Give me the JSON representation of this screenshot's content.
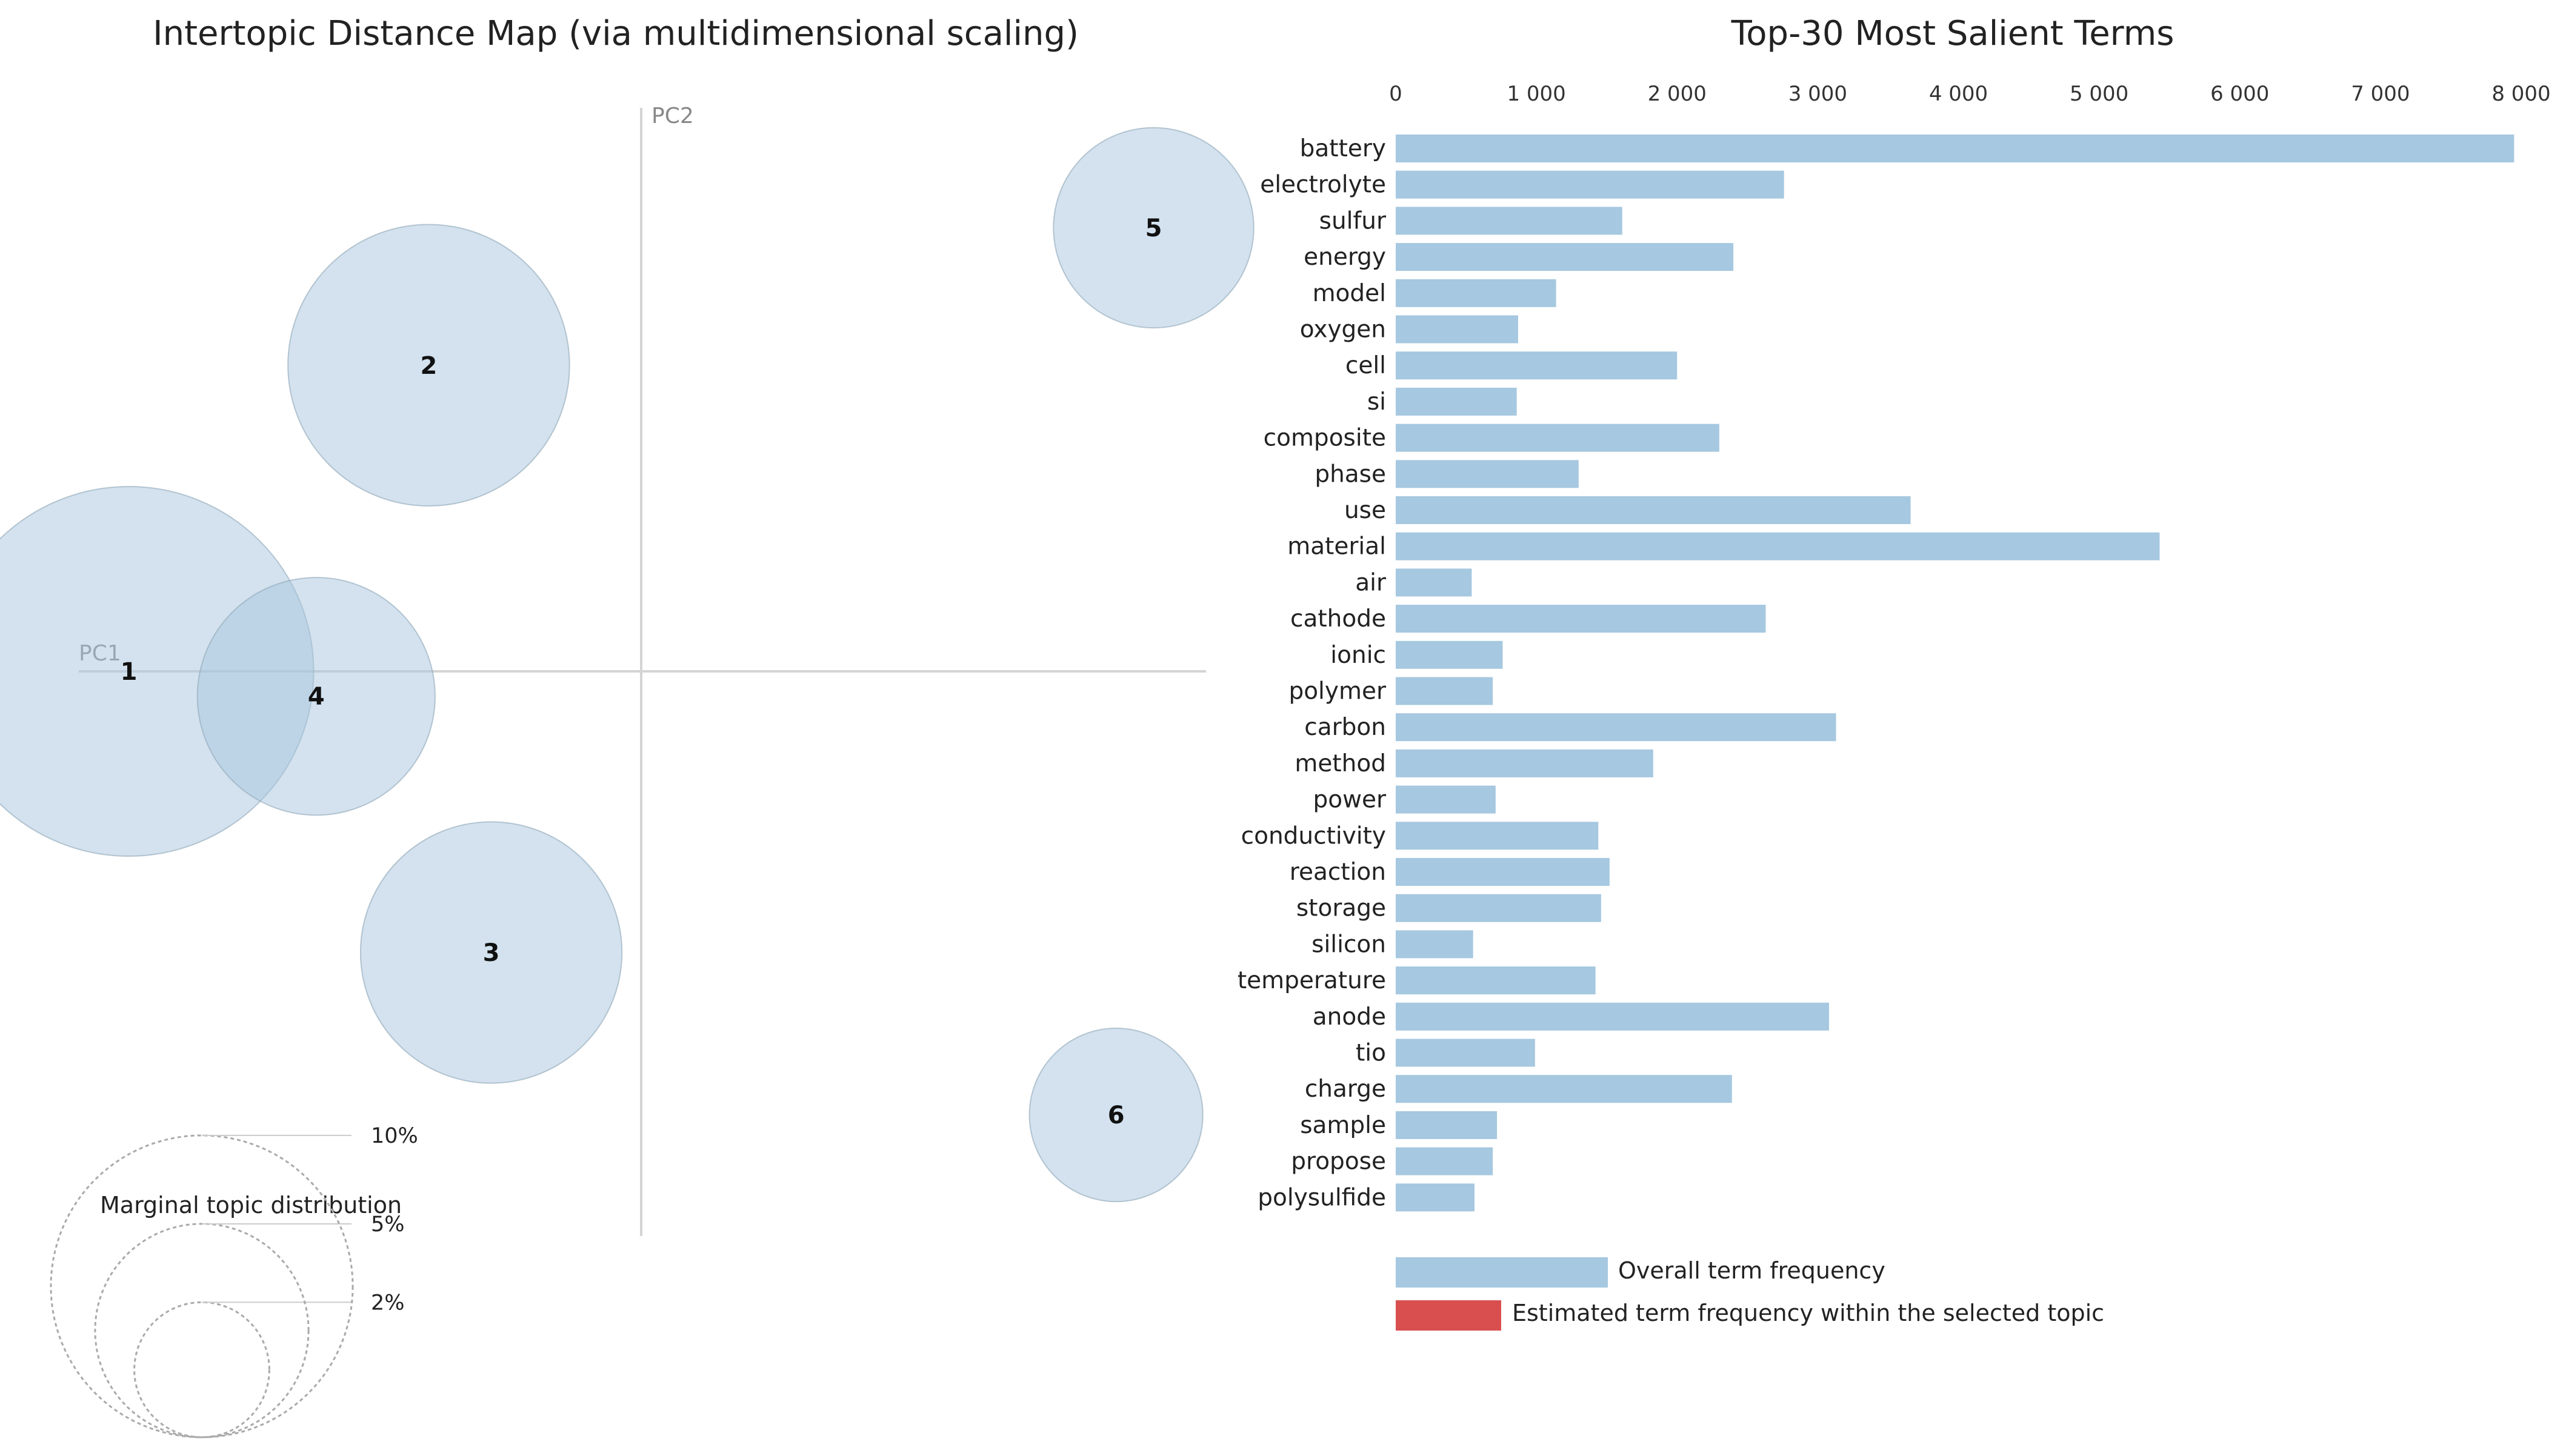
{
  "left_title": "Intertopic Distance Map (via multidimensional scaling)",
  "right_title": "Top-30 Most Salient Terms",
  "axes": {
    "pc1": "PC1",
    "pc2": "PC2"
  },
  "marginal": {
    "title": "Marginal topic distribution",
    "levels": [
      {
        "label": "2%",
        "fraction": 0.02
      },
      {
        "label": "5%",
        "fraction": 0.05
      },
      {
        "label": "10%",
        "fraction": 0.1
      }
    ]
  },
  "legend": {
    "overall": "Overall term frequency",
    "topic": "Estimated term frequency within the selected topic"
  },
  "colors": {
    "bar": "#a6c8e0",
    "topic_bar": "#d94f4f",
    "circle_fill": "#a8c6de",
    "circle_stroke": "#8fa6b8",
    "axis": "#d4d4d4",
    "marginal_stroke": "#aaaaaa"
  },
  "chart_data": [
    {
      "type": "scatter",
      "title": "Intertopic Distance Map (via multidimensional scaling)",
      "xlabel": "PC1",
      "ylabel": "PC2",
      "xlim": [
        -0.45,
        0.45
      ],
      "ylim": [
        -0.45,
        0.45
      ],
      "size_encoding": "marginal topic distribution",
      "topics": [
        {
          "id": "1",
          "pc1": -0.41,
          "pc2": 0.0,
          "share": 0.15
        },
        {
          "id": "2",
          "pc1": -0.17,
          "pc2": 0.245,
          "share": 0.087
        },
        {
          "id": "3",
          "pc1": -0.12,
          "pc2": -0.225,
          "share": 0.075
        },
        {
          "id": "4",
          "pc1": -0.26,
          "pc2": -0.02,
          "share": 0.062
        },
        {
          "id": "5",
          "pc1": 0.41,
          "pc2": 0.355,
          "share": 0.044
        },
        {
          "id": "6",
          "pc1": 0.38,
          "pc2": -0.355,
          "share": 0.033
        }
      ]
    },
    {
      "type": "bar",
      "orientation": "horizontal",
      "title": "Top-30 Most Salient Terms",
      "xlim": [
        0,
        8000
      ],
      "xticks": [
        0,
        1000,
        2000,
        3000,
        4000,
        5000,
        6000,
        7000,
        8000
      ],
      "xtick_labels": [
        "0",
        "1 000",
        "2 000",
        "3 000",
        "4 000",
        "5 000",
        "6 000",
        "7 000",
        "8 000"
      ],
      "series": [
        {
          "name": "Overall term frequency"
        }
      ],
      "terms": [
        {
          "term": "battery",
          "value": 7950
        },
        {
          "term": "electrolyte",
          "value": 2760
        },
        {
          "term": "sulfur",
          "value": 1610
        },
        {
          "term": "energy",
          "value": 2400
        },
        {
          "term": "model",
          "value": 1140
        },
        {
          "term": "oxygen",
          "value": 870
        },
        {
          "term": "cell",
          "value": 2000
        },
        {
          "term": "si",
          "value": 860
        },
        {
          "term": "composite",
          "value": 2300
        },
        {
          "term": "phase",
          "value": 1300
        },
        {
          "term": "use",
          "value": 3660
        },
        {
          "term": "material",
          "value": 5430
        },
        {
          "term": "air",
          "value": 540
        },
        {
          "term": "cathode",
          "value": 2630
        },
        {
          "term": "ionic",
          "value": 760
        },
        {
          "term": "polymer",
          "value": 690
        },
        {
          "term": "carbon",
          "value": 3130
        },
        {
          "term": "method",
          "value": 1830
        },
        {
          "term": "power",
          "value": 710
        },
        {
          "term": "conductivity",
          "value": 1440
        },
        {
          "term": "reaction",
          "value": 1520
        },
        {
          "term": "storage",
          "value": 1460
        },
        {
          "term": "silicon",
          "value": 550
        },
        {
          "term": "temperature",
          "value": 1420
        },
        {
          "term": "anode",
          "value": 3080
        },
        {
          "term": "tio",
          "value": 990
        },
        {
          "term": "charge",
          "value": 2390
        },
        {
          "term": "sample",
          "value": 720
        },
        {
          "term": "propose",
          "value": 690
        },
        {
          "term": "polysulfide",
          "value": 560
        }
      ]
    }
  ]
}
